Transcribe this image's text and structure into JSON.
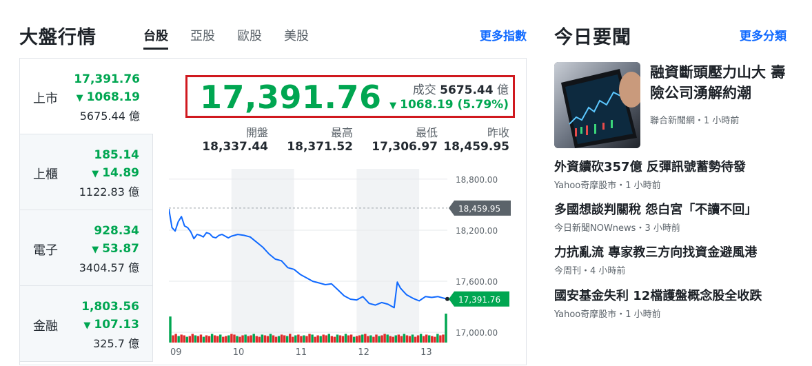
{
  "market": {
    "title": "大盤行情",
    "tabs": [
      {
        "label": "台股",
        "active": true
      },
      {
        "label": "亞股",
        "active": false
      },
      {
        "label": "歐股",
        "active": false
      },
      {
        "label": "美股",
        "active": false
      }
    ],
    "more_label": "更多指數",
    "indices": [
      {
        "name": "上市",
        "price": "17,391.76",
        "change": "1068.19",
        "volume": "5675.44 億"
      },
      {
        "name": "上櫃",
        "price": "185.14",
        "change": "14.89",
        "volume": "1122.83 億"
      },
      {
        "name": "電子",
        "price": "928.34",
        "change": "53.87",
        "volume": "3404.57 億"
      },
      {
        "name": "金融",
        "price": "1,803.56",
        "change": "107.13",
        "volume": "325.7 億"
      }
    ],
    "quote": {
      "price": "17,391.76",
      "volume_label": "成交",
      "volume_value": "5675.44",
      "volume_unit": "億",
      "change": "1068.19 (5.79%)",
      "down_arrow": "▼"
    },
    "stats": [
      {
        "label": "開盤",
        "value": "18,337.44"
      },
      {
        "label": "最高",
        "value": "18,371.52"
      },
      {
        "label": "最低",
        "value": "17,306.97"
      },
      {
        "label": "昨收",
        "value": "18,459.95"
      }
    ]
  },
  "colors": {
    "down": "#00a651",
    "up": "#e02a2a",
    "line": "#0f69ff",
    "highlight_box": "#d0191f",
    "link": "#0f69ff"
  },
  "chart_data": {
    "type": "line",
    "x_tick_labels": [
      "09",
      "10",
      "11",
      "12",
      "13"
    ],
    "y_tick_labels": [
      "18,800.00",
      "18,200.00",
      "17,600.00",
      "17,000.00"
    ],
    "ylim": [
      16880,
      18920
    ],
    "prev_close": 18459.95,
    "prev_close_label": "18,459.95",
    "last_label": "17,391.76",
    "last_value": 17391.76,
    "grid": "vertical bands",
    "series": [
      {
        "x": [
          0,
          0.05,
          0.1,
          0.15,
          0.2,
          0.25,
          0.3,
          0.35,
          0.4,
          0.45,
          0.5,
          0.55,
          0.6,
          0.65,
          0.7,
          0.75,
          0.8,
          0.85,
          0.9,
          0.95,
          1.0,
          1.1,
          1.2,
          1.3,
          1.4,
          1.5,
          1.6,
          1.7,
          1.8,
          1.9,
          2.0,
          2.1,
          2.2,
          2.3,
          2.4,
          2.5,
          2.6,
          2.7,
          2.8,
          2.9,
          3.0,
          3.1,
          3.2,
          3.3,
          3.4,
          3.5,
          3.6,
          3.65,
          3.7,
          3.75,
          3.8,
          3.9,
          4.0,
          4.1,
          4.2,
          4.3,
          4.45
        ],
        "values": [
          18450,
          18230,
          18190,
          18300,
          18360,
          18250,
          18230,
          18180,
          18100,
          18150,
          18140,
          18120,
          18170,
          18160,
          18120,
          18110,
          18140,
          18150,
          18130,
          18110,
          18130,
          18150,
          18140,
          18120,
          18060,
          18000,
          17920,
          17860,
          17840,
          17760,
          17740,
          17680,
          17640,
          17600,
          17580,
          17560,
          17570,
          17500,
          17430,
          17390,
          17380,
          17420,
          17340,
          17320,
          17350,
          17330,
          17290,
          17590,
          17520,
          17480,
          17440,
          17400,
          17370,
          17420,
          17410,
          17420,
          17390
        ]
      }
    ],
    "volume_values": [
      36,
      10,
      12,
      9,
      11,
      10,
      8,
      9,
      12,
      10,
      9,
      11,
      8,
      10,
      9,
      12,
      10,
      9,
      11,
      8,
      9,
      10,
      12,
      11,
      9,
      8,
      10,
      11,
      9,
      10,
      12,
      9,
      8,
      11,
      10,
      9,
      12,
      10,
      8,
      9,
      11,
      10,
      9,
      12,
      8,
      10,
      11,
      9,
      10,
      9,
      12,
      11,
      8,
      10,
      9,
      11,
      10,
      12,
      9,
      8,
      11,
      10,
      9,
      12,
      10,
      11,
      8,
      9,
      10,
      11,
      12,
      9,
      10,
      8,
      11,
      9,
      10,
      12,
      11,
      9,
      8,
      10,
      11,
      9,
      12,
      10,
      9,
      11,
      8,
      10,
      12,
      9,
      11,
      10,
      9,
      8,
      12,
      10,
      11,
      40
    ]
  },
  "news": {
    "title": "今日要聞",
    "more_label": "更多分類",
    "feature": {
      "headline": "融資斷頭壓力山大 壽險公司湧解約潮",
      "source": "聯合新聞網",
      "time": "1 小時前",
      "image_icon": "stock-chart-phone-image"
    },
    "items": [
      {
        "headline": "外資續砍357億 反彈訊號蓄勢待發",
        "source": "Yahoo奇摩股市",
        "time": "1 小時前"
      },
      {
        "headline": "多國想談判關稅 怨白宮「不讀不回」",
        "source": "今日新聞NOWnews",
        "time": "3 小時前"
      },
      {
        "headline": "力抗亂流 專家教三方向找資金避風港",
        "source": "今周刊",
        "time": "4 小時前"
      },
      {
        "headline": "國安基金失利 12檔護盤概念股全收跌",
        "source": "Yahoo奇摩股市",
        "time": "1 小時前"
      }
    ],
    "separator": "・"
  }
}
